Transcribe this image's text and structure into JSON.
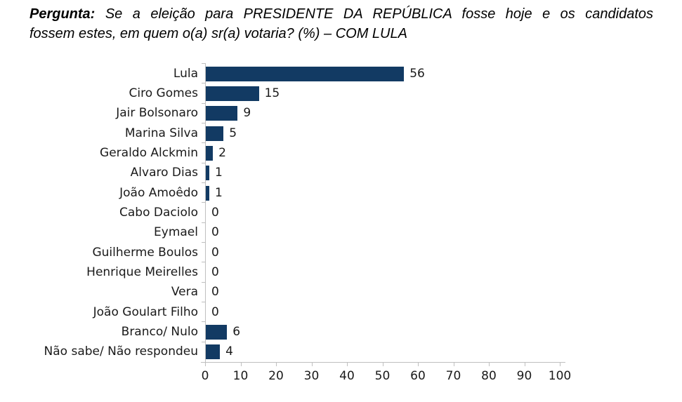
{
  "title": {
    "prefix": "Pergunta:",
    "line1_rest": "Se a eleição para PRESIDENTE DA REPÚBLICA fosse hoje e os candidatos",
    "line2": "fossem estes, em quem o(a) sr(a) votaria? (%) – COM LULA"
  },
  "chart_data": {
    "type": "bar",
    "orientation": "horizontal",
    "title": "Pergunta: Se a eleição para PRESIDENTE DA REPÚBLICA fosse hoje e os candidatos fossem estes, em quem o(a) sr(a) votaria? (%) – COM LULA",
    "categories": [
      "Lula",
      "Ciro Gomes",
      "Jair Bolsonaro",
      "Marina Silva",
      "Geraldo Alckmin",
      "Alvaro Dias",
      "João Amoêdo",
      "Cabo Daciolo",
      "Eymael",
      "Guilherme Boulos",
      "Henrique Meirelles",
      "Vera",
      "João Goulart Filho",
      "Branco/ Nulo",
      "Não sabe/ Não respondeu"
    ],
    "values": [
      56,
      15,
      9,
      5,
      2,
      1,
      1,
      0,
      0,
      0,
      0,
      0,
      0,
      6,
      4
    ],
    "xlim": [
      0,
      100
    ],
    "x_ticks": [
      0,
      10,
      20,
      30,
      40,
      50,
      60,
      70,
      80,
      90,
      100
    ],
    "value_labels": true,
    "grid": false,
    "legend": false,
    "bar_color": "#123A63",
    "axis_color": "#BFBFBF",
    "text_color": "#1A1A1A"
  }
}
